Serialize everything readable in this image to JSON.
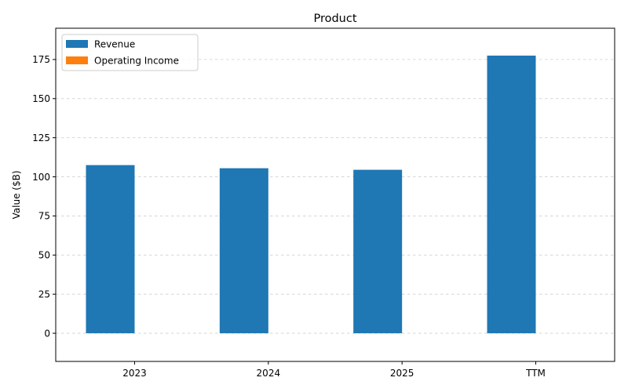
{
  "chart_data": {
    "type": "bar",
    "title": "Product",
    "xlabel": "",
    "ylabel": "Value ($B)",
    "categories": [
      "2023",
      "2024",
      "2025",
      "TTM"
    ],
    "series": [
      {
        "name": "Revenue",
        "color": "#1f77b4",
        "values": [
          107.5,
          105.5,
          104.5,
          177.5
        ]
      },
      {
        "name": "Operating Income",
        "color": "#ff7f0e",
        "values": [
          0,
          0,
          0,
          0
        ]
      }
    ],
    "ylim": [
      -18,
      195
    ],
    "yticks": [
      0,
      25,
      50,
      75,
      100,
      125,
      150,
      175
    ],
    "grid": "y-dashed",
    "legend_position": "top-left"
  }
}
